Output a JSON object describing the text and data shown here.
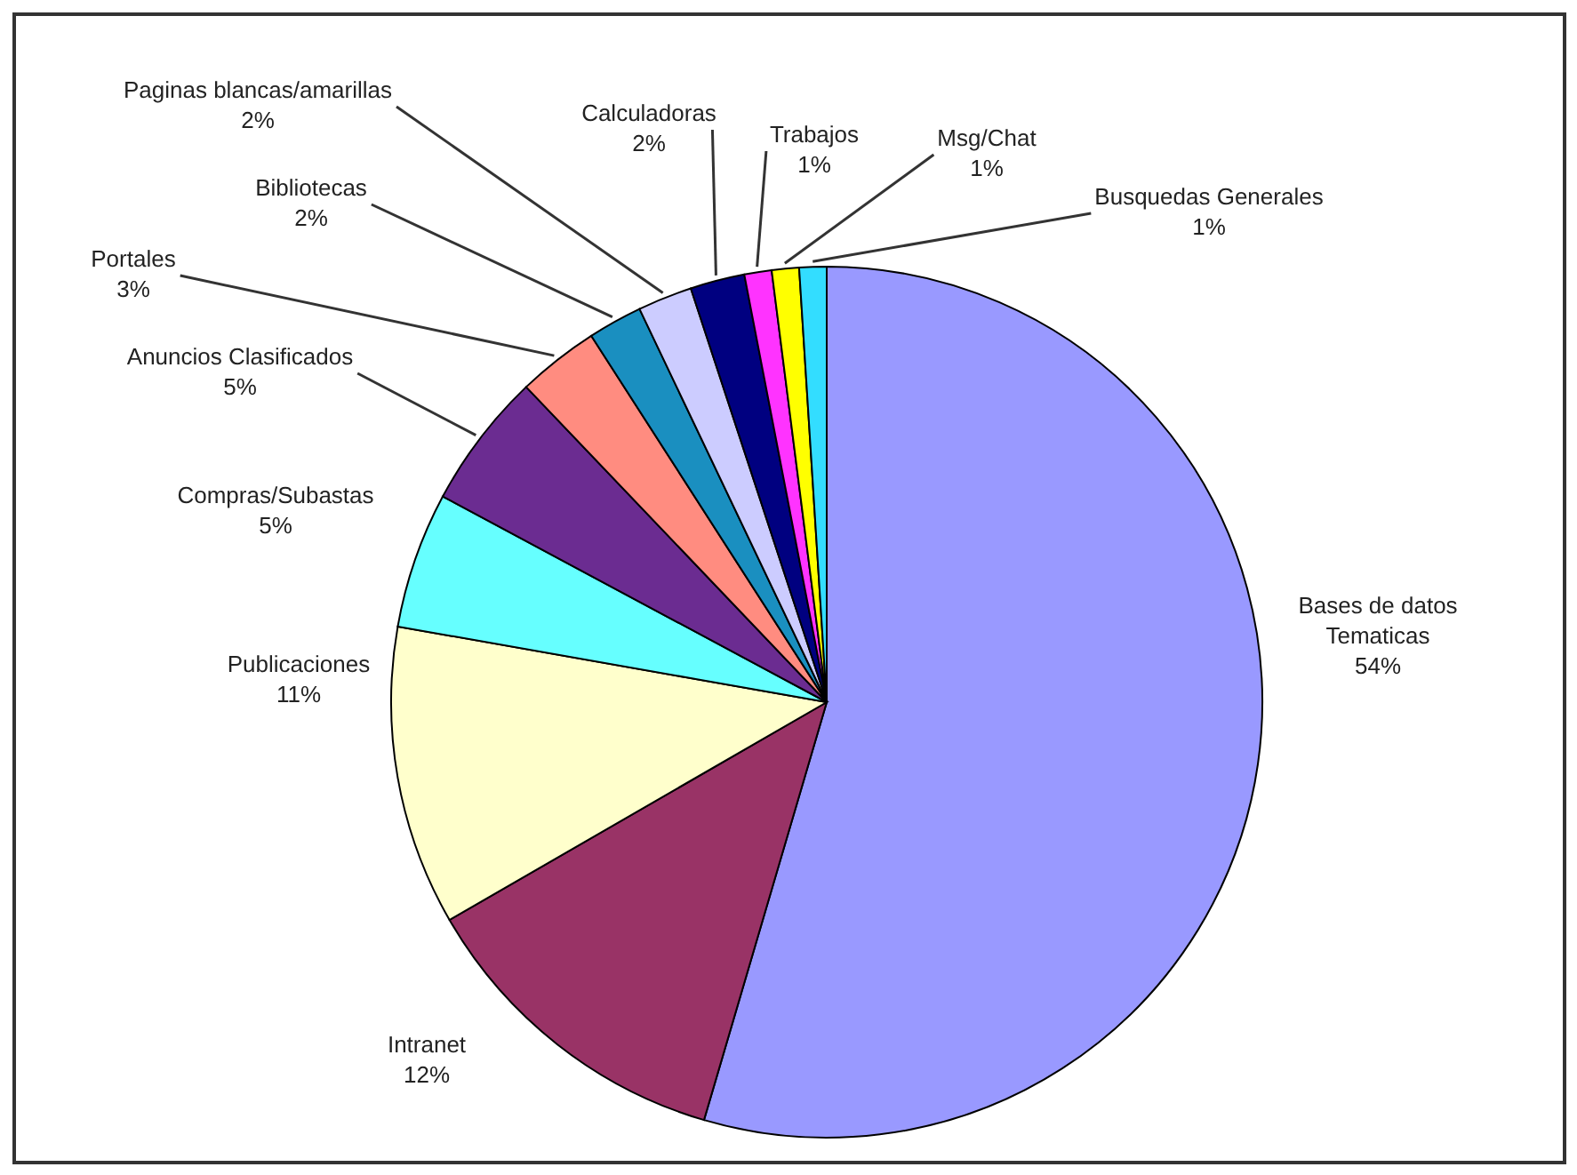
{
  "chart_data": {
    "type": "pie",
    "categories": [
      "Bases de datos Tematicas",
      "Intranet",
      "Publicaciones",
      "Compras/Subastas",
      "Anuncios Clasificados",
      "Portales",
      "Bibliotecas",
      "Paginas blancas/amarillas",
      "Calculadoras",
      "Trabajos",
      "Msg/Chat",
      "Busquedas Generales"
    ],
    "values": [
      54,
      12,
      11,
      5,
      5,
      3,
      2,
      2,
      2,
      1,
      1,
      1
    ],
    "colors": [
      "#9999ff",
      "#993366",
      "#ffffcc",
      "#66ffff",
      "#6b2c91",
      "#ff8c80",
      "#1a8fc0",
      "#ccccff",
      "#000080",
      "#ff33ff",
      "#ffff00",
      "#33ddff"
    ],
    "value_labels": [
      "54%",
      "12%",
      "11%",
      "5%",
      "5%",
      "3%",
      "2%",
      "2%",
      "2%",
      "1%",
      "1%",
      "1%"
    ],
    "legend": false
  }
}
